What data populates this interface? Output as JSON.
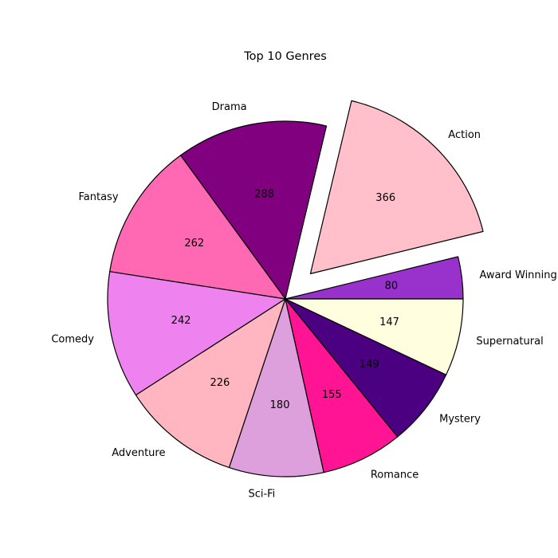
{
  "chart_data": {
    "type": "pie",
    "title": "Top 10 Genres",
    "start_angle_deg": 0,
    "direction": "counterclockwise",
    "slices": [
      {
        "label": "Award Winning",
        "value": 80,
        "color": "#9932CC",
        "explode": false
      },
      {
        "label": "Action",
        "value": 366,
        "color": "#FFC0CB",
        "explode": true
      },
      {
        "label": "Drama",
        "value": 288,
        "color": "#800080",
        "explode": false
      },
      {
        "label": "Fantasy",
        "value": 262,
        "color": "#FF69B4",
        "explode": false
      },
      {
        "label": "Comedy",
        "value": 242,
        "color": "#EE82EE",
        "explode": false
      },
      {
        "label": "Adventure",
        "value": 226,
        "color": "#FFB6C1",
        "explode": false
      },
      {
        "label": "Sci-Fi",
        "value": 180,
        "color": "#DDA0DD",
        "explode": false
      },
      {
        "label": "Romance",
        "value": 155,
        "color": "#FF1493",
        "explode": false
      },
      {
        "label": "Mystery",
        "value": 149,
        "color": "#4B0082",
        "explode": false
      },
      {
        "label": "Supernatural",
        "value": 147,
        "color": "#FFFFE0",
        "explode": false
      }
    ],
    "value_labels": "absolute"
  }
}
